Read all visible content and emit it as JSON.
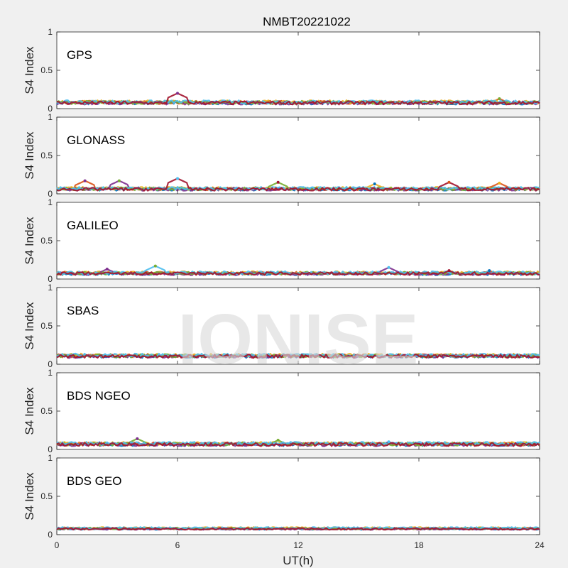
{
  "chart_data": [
    {
      "type": "scatter",
      "panel_label": "GPS",
      "ylabel": "S4 Index",
      "ylim": [
        0,
        1
      ],
      "yticks": [
        "0",
        "0.5",
        "1"
      ],
      "baseline": [
        0.03,
        0.12
      ],
      "spikes": [
        {
          "x": 6.0,
          "y": 0.2
        },
        {
          "x": 22.0,
          "y": 0.13
        }
      ]
    },
    {
      "type": "scatter",
      "panel_label": "GLONASS",
      "ylabel": "S4 Index",
      "ylim": [
        0,
        1
      ],
      "yticks": [
        "0",
        "0.5",
        "1"
      ],
      "baseline": [
        0.02,
        0.1
      ],
      "spikes": [
        {
          "x": 1.4,
          "y": 0.17
        },
        {
          "x": 3.1,
          "y": 0.17
        },
        {
          "x": 6.0,
          "y": 0.2
        },
        {
          "x": 11.0,
          "y": 0.15
        },
        {
          "x": 15.8,
          "y": 0.13
        },
        {
          "x": 19.5,
          "y": 0.15
        },
        {
          "x": 22.0,
          "y": 0.14
        }
      ]
    },
    {
      "type": "scatter",
      "panel_label": "GALILEO",
      "ylabel": "S4 Index",
      "ylim": [
        0,
        1
      ],
      "yticks": [
        "0",
        "0.5",
        "1"
      ],
      "baseline": [
        0.03,
        0.11
      ],
      "spikes": [
        {
          "x": 2.5,
          "y": 0.13
        },
        {
          "x": 4.9,
          "y": 0.17
        },
        {
          "x": 16.5,
          "y": 0.15
        },
        {
          "x": 19.5,
          "y": 0.11
        },
        {
          "x": 21.5,
          "y": 0.11
        }
      ]
    },
    {
      "type": "scatter",
      "panel_label": "SBAS",
      "ylabel": "S4 Index",
      "ylim": [
        0,
        1
      ],
      "yticks": [
        "0",
        "0.5",
        "1"
      ],
      "baseline": [
        0.06,
        0.15
      ],
      "spikes": []
    },
    {
      "type": "scatter",
      "panel_label": "BDS NGEO",
      "ylabel": "S4 Index",
      "ylim": [
        0,
        1
      ],
      "yticks": [
        "0",
        "0.5",
        "1"
      ],
      "baseline": [
        0.02,
        0.11
      ],
      "spikes": [
        {
          "x": 4.0,
          "y": 0.14
        },
        {
          "x": 11.0,
          "y": 0.12
        },
        {
          "x": 16.5,
          "y": 0.1
        }
      ]
    },
    {
      "type": "scatter",
      "panel_label": "BDS GEO",
      "ylabel": "S4 Index",
      "ylim": [
        0,
        1
      ],
      "yticks": [
        "0",
        "0.5",
        "1"
      ],
      "baseline": [
        0.05,
        0.1
      ],
      "spikes": []
    }
  ],
  "figure": {
    "title": "NMBT20221022",
    "xlabel": "UT(h)",
    "xlim": [
      0,
      24
    ],
    "xticks": [
      "0",
      "6",
      "12",
      "18",
      "24"
    ],
    "watermark": "IONISE",
    "colors": [
      "#0072bd",
      "#d95319",
      "#edb120",
      "#7e2f8e",
      "#77ac30",
      "#4dbeee",
      "#a2142f"
    ]
  }
}
